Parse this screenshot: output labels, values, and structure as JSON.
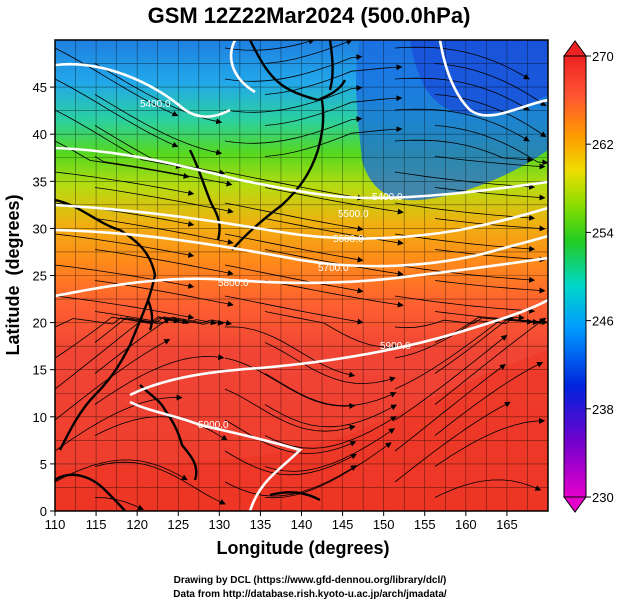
{
  "title": "GSM 12Z22Mar2024 (500.0hPa)",
  "x_axis": {
    "label": "Longitude (degrees)",
    "ticks": [
      "110",
      "115",
      "120",
      "125",
      "130",
      "135",
      "140",
      "145",
      "150",
      "155",
      "160",
      "165"
    ],
    "range": [
      110,
      170
    ]
  },
  "y_axis": {
    "label": "Latitude  (degrees)",
    "ticks": [
      "0",
      "5",
      "10",
      "15",
      "20",
      "25",
      "30",
      "35",
      "40",
      "45"
    ],
    "range": [
      0,
      50
    ]
  },
  "colorbar": {
    "ticks": [
      "230",
      "238",
      "246",
      "254",
      "262",
      "270"
    ],
    "range": [
      230,
      270
    ],
    "colors": [
      "#e600cc",
      "#7700cc",
      "#0022dd",
      "#0099ff",
      "#00d6c8",
      "#22cc22",
      "#88dd00",
      "#eedd00",
      "#ff9900",
      "#ff5533",
      "#ee2222"
    ]
  },
  "contours": [
    {
      "label": "5400.0"
    },
    {
      "label": "5400.0"
    },
    {
      "label": "5500.0"
    },
    {
      "label": "5600.0"
    },
    {
      "label": "5700.0"
    },
    {
      "label": "5800.0"
    },
    {
      "label": "5900.0"
    },
    {
      "label": "5900.0"
    }
  ],
  "credits": {
    "line1": "Drawing by DCL (https://www.gfd-dennou.org/library/dcl/)",
    "line2": "Data from http://database.rish.kyoto-u.ac.jp/arch/jmadata/"
  }
}
